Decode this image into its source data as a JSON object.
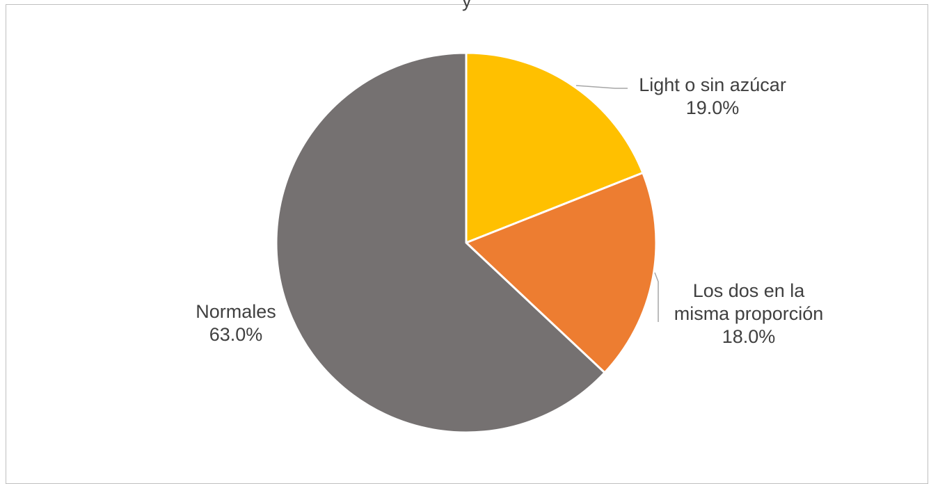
{
  "chart_data": {
    "type": "pie",
    "title_fragment": "y",
    "start_angle_deg": 0,
    "direction": "clockwise",
    "slices": [
      {
        "name": "Light o sin azúcar",
        "value": 19.0,
        "label_lines": [
          "Light o sin azúcar"
        ],
        "pct_label": "19.0%",
        "color": "#FFC000"
      },
      {
        "name": "Los dos en la misma proporción",
        "value": 18.0,
        "label_lines": [
          "Los dos en la",
          "misma proporción"
        ],
        "pct_label": "18.0%",
        "color": "#ED7D31"
      },
      {
        "name": "Normales",
        "value": 63.0,
        "label_lines": [
          "Normales"
        ],
        "pct_label": "63.0%",
        "color": "#757171"
      }
    ],
    "legend": "none",
    "data_labels": "category and percentage, outside with leader lines"
  }
}
